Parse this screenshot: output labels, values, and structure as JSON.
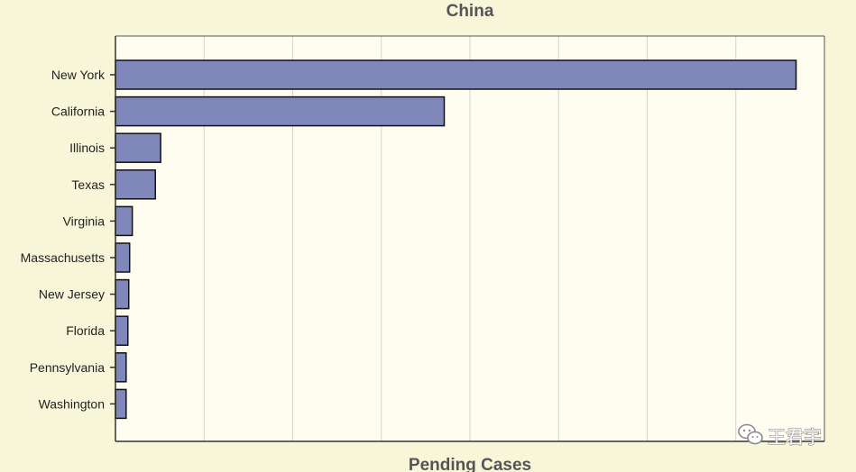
{
  "chart_data": {
    "type": "bar",
    "orientation": "horizontal",
    "title": "China",
    "xlabel": "Pending Cases",
    "ylabel": "",
    "categories": [
      "New York",
      "California",
      "Illinois",
      "Texas",
      "Virginia",
      "Massachusetts",
      "New Jersey",
      "Florida",
      "Pennsylvania",
      "Washington"
    ],
    "values": [
      768,
      371,
      51,
      45,
      19,
      16,
      15,
      14,
      12,
      12
    ],
    "xlim": [
      0,
      800
    ],
    "grid": true,
    "legend": "none",
    "colors": {
      "bar_fill": "#8088bb",
      "bar_stroke": "#111111",
      "plot_bg": "#fefdf0",
      "page_bg": "#f8f6d9",
      "grid": "#d3d3d3",
      "title": "#555555"
    }
  },
  "watermark": {
    "icon": "wechat-icon",
    "text": "王君宇"
  }
}
